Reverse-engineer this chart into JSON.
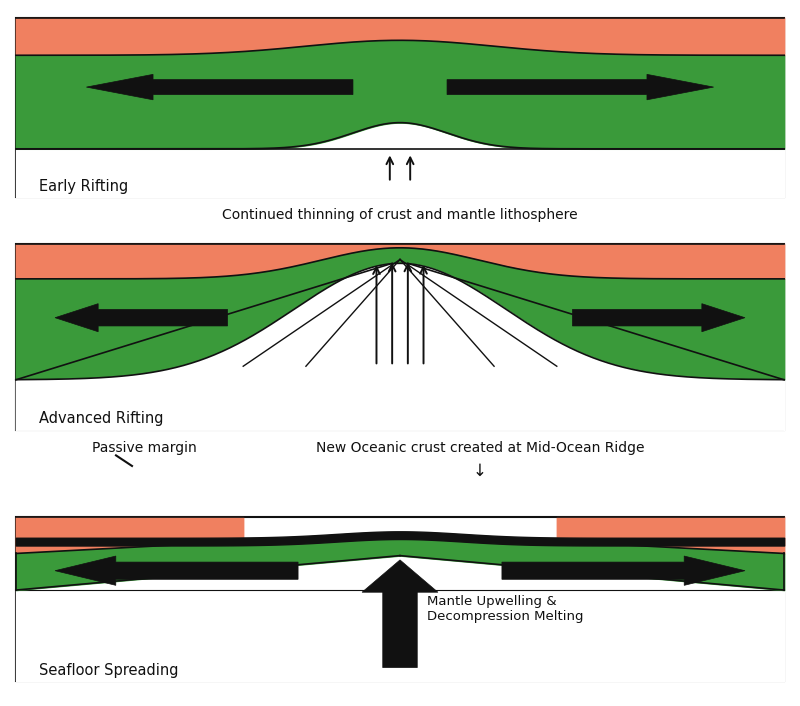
{
  "salmon_color": "#F08060",
  "green_color": "#3A9A3A",
  "black_color": "#111111",
  "white_color": "#FFFFFF",
  "bg_color": "#FFFFFF",
  "panel1_label": "Early Rifting",
  "panel2_label": "Advanced Rifting",
  "panel3_label": "Seafloor Spreading",
  "caption1": "Continued thinning of crust and mantle lithosphere",
  "caption2_left": "Passive margin",
  "caption2_right": "New Oceanic crust created at Mid-Ocean Ridge",
  "mantle_label": "Mantle Upwelling &\nDecompression Melting",
  "figsize": [
    8.0,
    7.06
  ],
  "dpi": 100
}
